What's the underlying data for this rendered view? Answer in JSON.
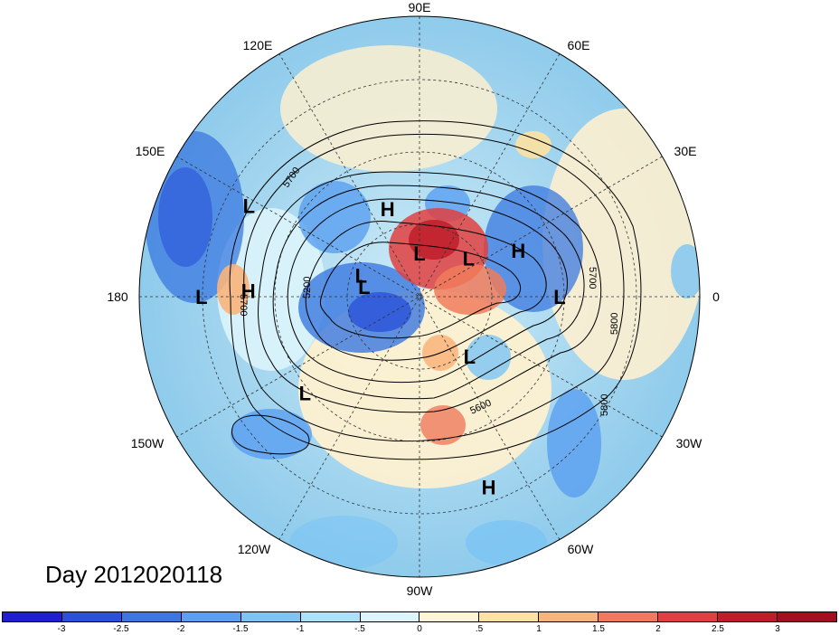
{
  "title": "Day 2012020118",
  "longitude_labels": {
    "lon_90e": "90E",
    "lon_60e": "60E",
    "lon_30e": "30E",
    "lon_0": "0",
    "lon_30w": "30W",
    "lon_60w": "60W",
    "lon_90w": "90W",
    "lon_120w": "120W",
    "lon_150w": "150W",
    "lon_180": "180",
    "lon_150e": "150E",
    "lon_120e": "120E"
  },
  "pressure_systems": [
    {
      "label": "H",
      "lon": 110,
      "lat": 60
    },
    {
      "label": "H",
      "lon": 25,
      "lat": 55
    },
    {
      "label": "H",
      "lon": 178,
      "lat": 35
    },
    {
      "label": "H",
      "lon": -70,
      "lat": 25
    },
    {
      "label": "L",
      "lon": 152,
      "lat": 28
    },
    {
      "label": "L",
      "lon": 90,
      "lat": 76
    },
    {
      "label": "L",
      "lon": 38,
      "lat": 70
    },
    {
      "label": "L",
      "lon": 0,
      "lat": 45
    },
    {
      "label": "L",
      "lon": 180,
      "lat": 20
    },
    {
      "label": "L",
      "lon": 170,
      "lat": 72
    },
    {
      "label": "L",
      "lon": 160,
      "lat": 70
    },
    {
      "label": "L",
      "lon": -50,
      "lat": 65
    },
    {
      "label": "L",
      "lon": -140,
      "lat": 42
    }
  ],
  "contour_labels": {
    "c5700_nw": "5700",
    "c5200": "5200",
    "c5700_w": "5700",
    "c5700_e": "5700",
    "c5800_e": "5800",
    "c5600": "5600",
    "c5800_se": "5800"
  },
  "colorbar": {
    "ticks": [
      "-3",
      "-2.5",
      "-2",
      "-1.5",
      "-1",
      "-.5",
      "0",
      ".5",
      "1",
      "1.5",
      "2",
      "2.5",
      "3"
    ],
    "colors": [
      "#1f1fcf",
      "#2a52d9",
      "#3a78e0",
      "#5a9ff0",
      "#7cc4f5",
      "#a8e3fa",
      "#dcf4fb",
      "#fff5d6",
      "#fde2a2",
      "#f9b47b",
      "#f07b5c",
      "#e04040",
      "#c01d2a",
      "#a0101e"
    ]
  },
  "colors": {
    "ocean_base": "#a9d9f2",
    "land_base": "#fdf0d0"
  }
}
